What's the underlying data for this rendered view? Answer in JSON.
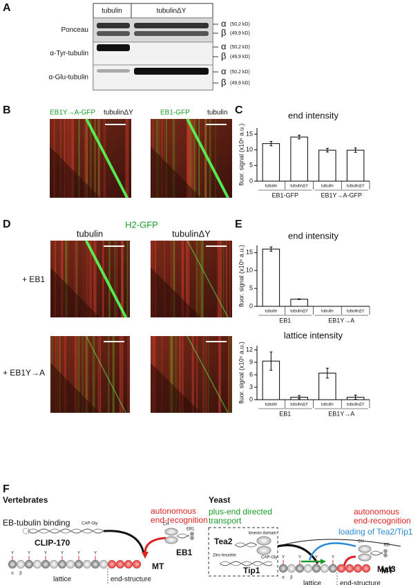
{
  "panel_labels": [
    "A",
    "B",
    "C",
    "D",
    "E",
    "F"
  ],
  "panel_a": {
    "columns": [
      "tubulin",
      "tubulinΔY"
    ],
    "rows": [
      "Ponceau",
      "α-Tyr-tubulin",
      "α-Glu-tubulin"
    ],
    "markers": [
      {
        "subunit": "α",
        "mass": "(50,2 kD)"
      },
      {
        "subunit": "β",
        "mass": "(49,9 kD)"
      },
      {
        "subunit": "α",
        "mass": "(50,2 kD)"
      },
      {
        "subunit": "β",
        "mass": "(49,9 kD)"
      },
      {
        "subunit": "α",
        "mass": "(50,2 kD)"
      },
      {
        "subunit": "β",
        "mass": "(49,9 kD)"
      }
    ]
  },
  "panel_b": {
    "kymographs": [
      {
        "labels": [
          "EB1Y→A-GFP",
          "tubulinΔY"
        ]
      },
      {
        "labels": [
          "EB1-GFP",
          "tubulin"
        ]
      }
    ]
  },
  "panel_d": {
    "title": "H2-GFP",
    "columns": [
      "tubulin",
      "tubulinΔY"
    ],
    "rows": [
      "+ EB1",
      "+ EB1Y→A"
    ]
  },
  "panel_f": {
    "vertebrates": {
      "title": "Vertebrates",
      "binding": "EB-tubulin binding",
      "recognition": [
        "autonomous",
        "end-recognition"
      ],
      "clip": "CLIP-170",
      "capgly": "CAP-Gly",
      "eb1": "EB1",
      "ch": "CH",
      "y": "Y",
      "mt": "MT",
      "alpha": "α",
      "beta": "β",
      "lattice": "lattice",
      "end": "end-structure"
    },
    "yeast": {
      "title": "Yeast",
      "transport": [
        "plus-end directed",
        "transport"
      ],
      "tea2": "Tea2",
      "kinesin": "kinesin domain",
      "tip1": "Tip1",
      "zinc": "Zinc-knuckle",
      "capgly": "CAP-Gly",
      "recognition": [
        "autonomous",
        "end-recognition"
      ],
      "loading": "loading of Tea2/Tip1",
      "mal3": "Mal3",
      "ch": "CH",
      "eb": "EB",
      "y": "Y",
      "mt": "MT",
      "alpha": "α",
      "beta": "β",
      "lattice": "lattice",
      "end": "end-structure"
    }
  },
  "chart_data": [
    {
      "type": "bar",
      "title": "end intensity",
      "y_label": "fluor. signal (x10⁶ a.u.)",
      "categories": [
        "tubulin",
        "tubulinΔY",
        "tubulin",
        "tubulinΔY"
      ],
      "groups": [
        "EB1-GFP",
        "EB1Y→A-GFP"
      ],
      "values": [
        12,
        14.1,
        9.9,
        9.9
      ],
      "errors": [
        0.7,
        0.6,
        0.6,
        0.7
      ],
      "color": "#ffffff",
      "ylim": [
        0,
        17
      ],
      "yticks": [
        0,
        5,
        10,
        15
      ]
    },
    {
      "type": "bar",
      "title": "end intensity",
      "y_label": "fluor. signal (x10⁶ a.u.)",
      "categories": [
        "tubulin",
        "tubulinΔY",
        "tubulin",
        "tubulinΔY"
      ],
      "groups": [
        "EB1",
        "EB1Y→A"
      ],
      "values": [
        16,
        2,
        0,
        0
      ],
      "errors": [
        0.6,
        0.1,
        0,
        0
      ],
      "color": "#ffffff",
      "ylim": [
        0,
        17
      ],
      "yticks": [
        0,
        5,
        10,
        15
      ]
    },
    {
      "type": "bar",
      "title": "lattice intensity",
      "y_label": "fluor. signal (x10⁵ a.u.)",
      "categories": [
        "tubulin",
        "tubulinΔY",
        "tubulin",
        "tubulinΔY"
      ],
      "groups": [
        "EB1",
        "EB1Y→A"
      ],
      "values": [
        9.3,
        0.6,
        6.4,
        0.6
      ],
      "errors": [
        2.2,
        0.4,
        1.2,
        0.5
      ],
      "color": "#ffffff",
      "ylim": [
        0,
        13
      ],
      "yticks": [
        0,
        3,
        6,
        9,
        12
      ]
    }
  ]
}
